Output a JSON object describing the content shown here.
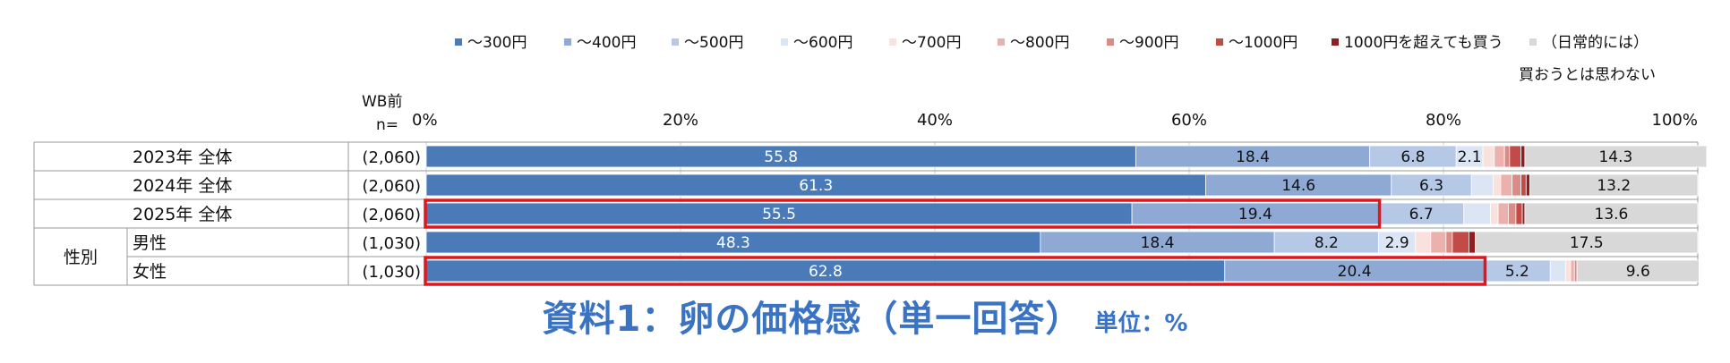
{
  "chart_data": {
    "type": "bar",
    "orientation": "horizontal",
    "stacked": "100%",
    "header": {
      "wb_label": "WB前",
      "n_label": "n="
    },
    "axis": {
      "ticks": [
        "0%",
        "20%",
        "40%",
        "60%",
        "80%",
        "100%"
      ],
      "xlim": [
        0,
        100
      ],
      "grid": true
    },
    "legend_position": "top",
    "series": [
      {
        "name": "～300円",
        "color": "#4a7ab8"
      },
      {
        "name": "～400円",
        "color": "#8eaad4"
      },
      {
        "name": "～500円",
        "color": "#b5c9e6"
      },
      {
        "name": "～600円",
        "color": "#dbe5f3"
      },
      {
        "name": "～700円",
        "color": "#f9e1de"
      },
      {
        "name": "～800円",
        "color": "#ebb1ad"
      },
      {
        "name": "～900円",
        "color": "#dc8a85"
      },
      {
        "name": "～1000円",
        "color": "#c24a47"
      },
      {
        "name": "1000円を超えても買う",
        "color": "#8f1d21"
      },
      {
        "name": "（日常的には）\n買おうとは思わない",
        "color": "#d8d8d8"
      }
    ],
    "rows": [
      {
        "group": "",
        "label": "2023年 全体",
        "n": "(2,060)",
        "highlight_segments": 0,
        "values": [
          55.8,
          18.4,
          6.8,
          2.1,
          0.9,
          0.8,
          0.4,
          0.9,
          0.3,
          14.3
        ],
        "labels": [
          "55.8",
          "18.4",
          "6.8",
          "2.1",
          "",
          "",
          "",
          "",
          "",
          "14.3"
        ]
      },
      {
        "group": "",
        "label": "2024年 全体",
        "n": "(2,060)",
        "highlight_segments": 0,
        "values": [
          61.3,
          14.6,
          6.3,
          1.7,
          0.6,
          0.9,
          0.7,
          0.4,
          0.3,
          13.2
        ],
        "labels": [
          "61.3",
          "14.6",
          "6.3",
          "",
          "",
          "",
          "",
          "",
          "",
          "13.2"
        ]
      },
      {
        "group": "",
        "label": "2025年 全体",
        "n": "(2,060)",
        "highlight_segments": 2,
        "values": [
          55.5,
          19.4,
          6.7,
          2.1,
          0.6,
          0.8,
          0.6,
          0.5,
          0.2,
          13.6
        ],
        "labels": [
          "55.5",
          "19.4",
          "6.7",
          "",
          "",
          "",
          "",
          "",
          "",
          "13.6"
        ]
      },
      {
        "group": "性別",
        "label": "男性",
        "n": "(1,030)",
        "highlight_segments": 0,
        "values": [
          48.3,
          18.4,
          8.2,
          2.9,
          1.2,
          1.2,
          0.5,
          1.3,
          0.5,
          17.5
        ],
        "labels": [
          "48.3",
          "18.4",
          "8.2",
          "2.9",
          "",
          "",
          "",
          "",
          "",
          "17.5"
        ]
      },
      {
        "group": "性別",
        "label": "女性",
        "n": "(1,030)",
        "highlight_segments": 2,
        "values": [
          62.8,
          20.4,
          5.2,
          1.2,
          0.4,
          0.3,
          0.2,
          0.0,
          0.0,
          9.6
        ],
        "labels": [
          "62.8",
          "20.4",
          "5.2",
          "",
          "",
          "",
          "",
          "",
          "",
          "9.6"
        ]
      }
    ]
  },
  "caption": {
    "title": "資料1：卵の価格感（単一回答）",
    "unit": "単位：%"
  }
}
